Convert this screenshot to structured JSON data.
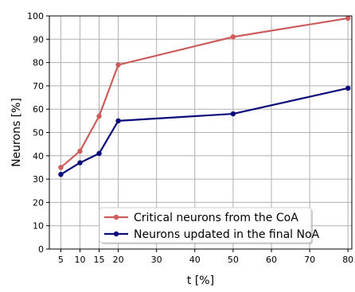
{
  "chart_data": {
    "type": "line",
    "title": "",
    "xlabel": "t [%]",
    "ylabel": "Neurons [%]",
    "xlim": [
      2,
      81
    ],
    "ylim": [
      0,
      100
    ],
    "x_ticks": [
      5,
      10,
      15,
      20,
      30,
      40,
      50,
      60,
      70,
      80
    ],
    "y_ticks": [
      0,
      10,
      20,
      30,
      40,
      50,
      60,
      70,
      80,
      90,
      100
    ],
    "grid": true,
    "legend_position": "lower-center",
    "series": [
      {
        "name": "Critical neurons from the CoA",
        "color": "#cd5c5c",
        "marker": "circle",
        "x": [
          5,
          10,
          15,
          20,
          50,
          80
        ],
        "y": [
          35,
          42,
          57,
          79,
          91,
          99
        ]
      },
      {
        "name": "Neurons updated in the final NoA",
        "color": "#0a0a7a",
        "marker": "circle",
        "x": [
          5,
          10,
          15,
          20,
          50,
          80
        ],
        "y": [
          32,
          37,
          41,
          55,
          58,
          69
        ]
      }
    ]
  }
}
